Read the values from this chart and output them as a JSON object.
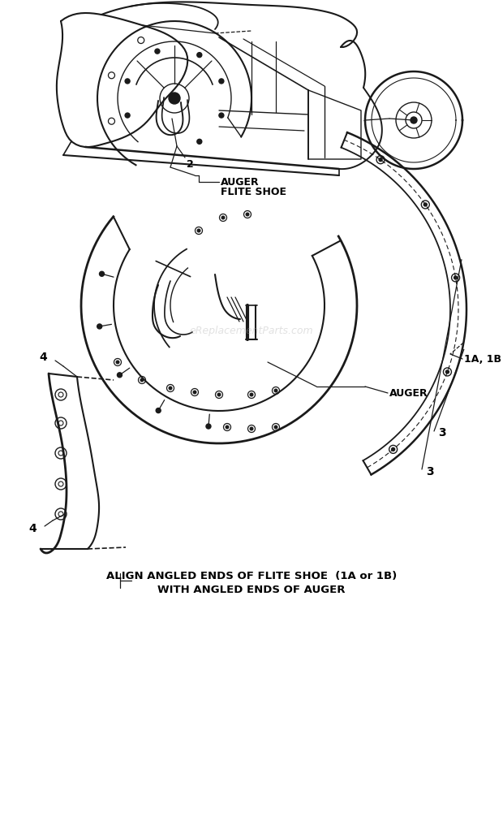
{
  "bg_color": "#ffffff",
  "fig_width": 6.2,
  "fig_height": 10.16,
  "dpi": 100,
  "lc": "#1a1a1a",
  "watermark_text": "eReplacementParts.com",
  "caption_line1": "ALIGN ANGLED ENDS OF FLITE SHOE  (1A or 1B)",
  "caption_line2": "WITH ANGLED ENDS OF AUGER",
  "label_auger_flite_shoe_1": "AUGER",
  "label_auger_flite_shoe_2": "FLITE SHOE",
  "label_2": "2",
  "label_auger": "AUGER",
  "label_1a1b": "1A, 1B",
  "label_4": "4",
  "label_3": "3"
}
